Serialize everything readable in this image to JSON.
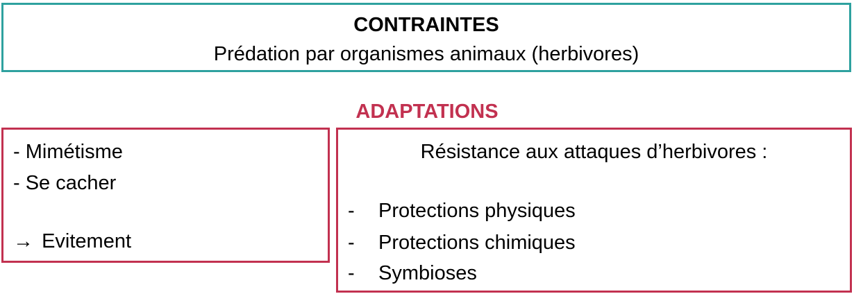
{
  "constraints": {
    "title": "CONTRAINTES",
    "subtitle": "Prédation par organismes animaux (herbivores)"
  },
  "adaptations": {
    "heading": "ADAPTATIONS",
    "left": {
      "items": [
        "- Mimétisme",
        "- Se cacher"
      ],
      "result_arrow": "→",
      "result": "Evitement"
    },
    "right": {
      "title": "Résistance aux attaques d’herbivores :",
      "items": [
        "Protections physiques",
        "Protections chimiques",
        "Symbioses"
      ]
    }
  },
  "colors": {
    "constraints_border": "#2ea19f",
    "adaptations_accent": "#c23150"
  }
}
